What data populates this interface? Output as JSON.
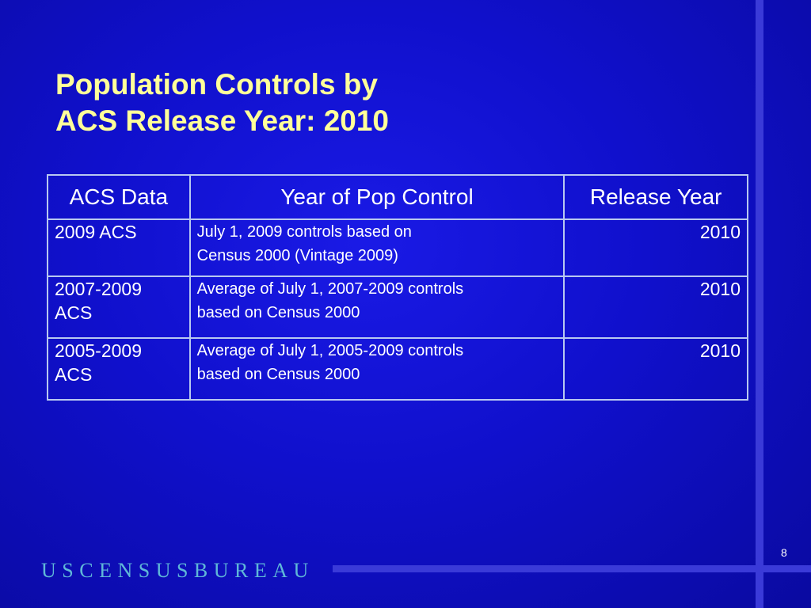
{
  "title": {
    "line1": "Population Controls by",
    "line2": "ACS Release Year: 2010"
  },
  "table": {
    "headers": [
      "ACS Data",
      "Year of Pop Control",
      "Release Year"
    ],
    "rows": [
      {
        "acs": "2009 ACS",
        "control_line1": "July 1, 2009 controls based on",
        "control_line2": "Census 2000 (Vintage 2009)",
        "release": "2010"
      },
      {
        "acs_line1": "2007-2009",
        "acs_line2": "ACS",
        "control_line1": "Average of July 1, 2007-2009 controls",
        "control_line2": "based on Census 2000",
        "release": "2010"
      },
      {
        "acs_line1": "2005-2009",
        "acs_line2": "ACS",
        "control_line1": "Average of July 1, 2005-2009 controls",
        "control_line2": "based on Census 2000",
        "release": "2010"
      }
    ]
  },
  "page_number": "8",
  "logo_text": "USCENSUSBUREAU",
  "colors": {
    "background": "#1010cc",
    "title": "#ffff99",
    "accent_bar": "#3a3ad8",
    "table_border": "#b8c8f0",
    "logo": "#5fb8d8"
  }
}
